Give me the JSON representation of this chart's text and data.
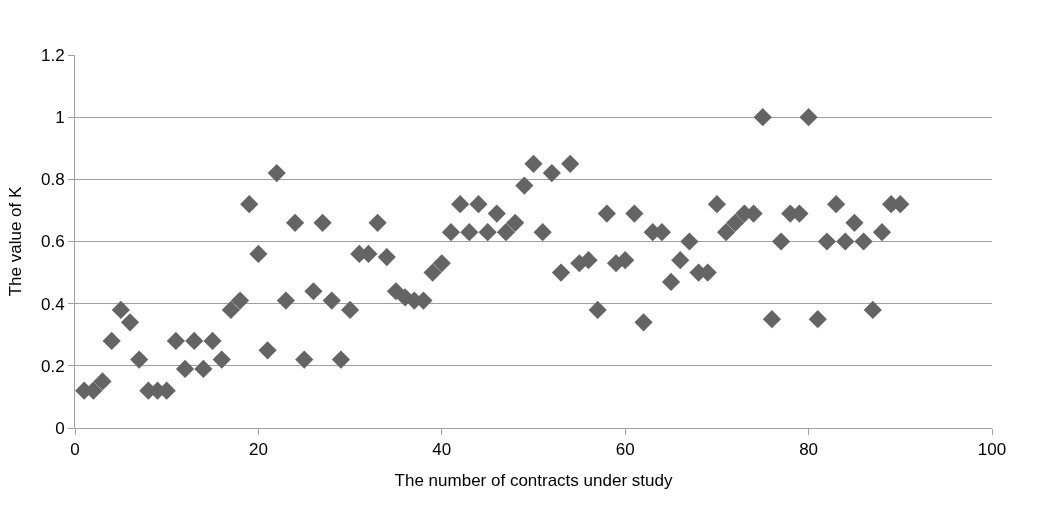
{
  "chart_data": {
    "type": "scatter",
    "xlabel": "The number of contracts under study",
    "ylabel": "The value of K",
    "x": [
      1,
      2,
      3,
      4,
      5,
      6,
      7,
      8,
      9,
      10,
      11,
      12,
      13,
      14,
      15,
      16,
      17,
      18,
      19,
      20,
      21,
      22,
      23,
      24,
      25,
      26,
      27,
      28,
      29,
      30,
      31,
      32,
      33,
      34,
      35,
      36,
      37,
      38,
      39,
      40,
      41,
      42,
      43,
      44,
      45,
      46,
      47,
      48,
      49,
      50,
      51,
      52,
      53,
      54,
      55,
      56,
      57,
      58,
      59,
      60,
      61,
      62,
      63,
      64,
      65,
      66,
      67,
      68,
      69,
      70,
      71,
      72,
      73,
      74,
      75,
      76,
      77,
      78,
      79,
      80,
      81,
      82,
      83,
      84,
      85,
      86,
      87,
      88,
      89,
      90
    ],
    "series": [
      {
        "color": "#646464",
        "values": [
          0.12,
          0.12,
          0.15,
          0.28,
          0.38,
          0.34,
          0.22,
          0.12,
          0.12,
          0.12,
          0.28,
          0.19,
          0.28,
          0.19,
          0.28,
          0.22,
          0.38,
          0.41,
          0.72,
          0.56,
          0.25,
          0.82,
          0.41,
          0.66,
          0.22,
          0.44,
          0.66,
          0.41,
          0.22,
          0.38,
          0.56,
          0.56,
          0.66,
          0.55,
          0.44,
          0.42,
          0.41,
          0.41,
          0.5,
          0.53,
          0.63,
          0.72,
          0.63,
          0.72,
          0.63,
          0.69,
          0.63,
          0.66,
          0.78,
          0.85,
          0.63,
          0.82,
          0.5,
          0.85,
          0.53,
          0.54,
          0.38,
          0.69,
          0.53,
          0.54,
          0.69,
          0.34,
          0.63,
          0.63,
          0.47,
          0.54,
          0.6,
          0.5,
          0.5,
          0.72,
          0.63,
          0.66,
          0.69,
          0.69,
          1.0,
          0.35,
          0.6,
          0.69,
          0.69,
          1.0,
          0.35,
          0.6,
          0.72,
          0.6,
          0.66,
          0.6,
          0.38,
          0.63,
          0.72,
          0.72
        ]
      }
    ],
    "xlim": [
      0,
      100
    ],
    "xticks": [
      0,
      20,
      40,
      60,
      80,
      100
    ],
    "ylim": [
      0,
      1.2
    ],
    "yticks": [
      0,
      0.2,
      0.4,
      0.6,
      0.8,
      1,
      1.2
    ],
    "grid": "y",
    "marker": "diamond"
  }
}
